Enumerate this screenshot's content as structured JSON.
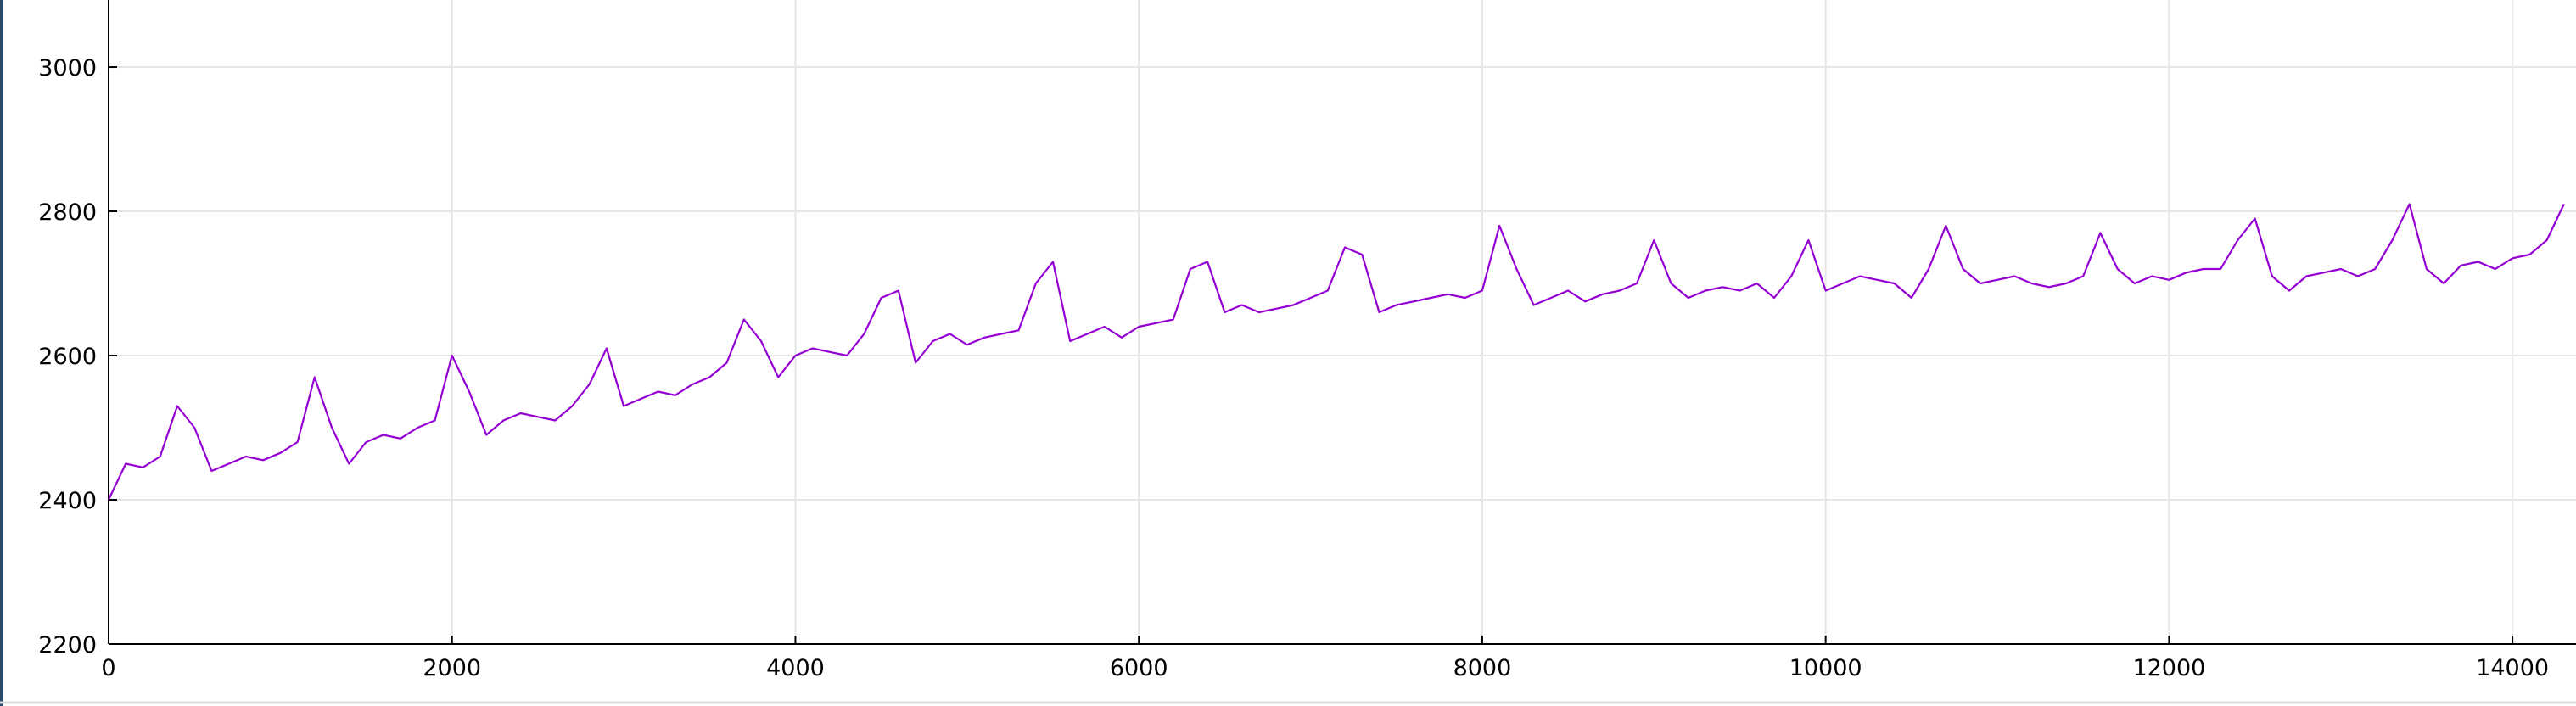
{
  "chart_data": {
    "type": "line",
    "x": [
      0,
      100,
      200,
      300,
      400,
      500,
      600,
      700,
      800,
      900,
      1000,
      1100,
      1200,
      1300,
      1400,
      1500,
      1600,
      1700,
      1800,
      1900,
      2000,
      2100,
      2200,
      2300,
      2400,
      2500,
      2600,
      2700,
      2800,
      2900,
      3000,
      3100,
      3200,
      3300,
      3400,
      3500,
      3600,
      3700,
      3800,
      3900,
      4000,
      4100,
      4200,
      4300,
      4400,
      4500,
      4600,
      4700,
      4800,
      4900,
      5000,
      5100,
      5200,
      5300,
      5400,
      5500,
      5600,
      5700,
      5800,
      5900,
      6000,
      6100,
      6200,
      6300,
      6400,
      6500,
      6600,
      6700,
      6800,
      6900,
      7000,
      7100,
      7200,
      7300,
      7400,
      7500,
      7600,
      7700,
      7800,
      7900,
      8000,
      8100,
      8200,
      8300,
      8400,
      8500,
      8600,
      8700,
      8800,
      8900,
      9000,
      9100,
      9200,
      9300,
      9400,
      9500,
      9600,
      9700,
      9800,
      9900,
      10000,
      10100,
      10200,
      10300,
      10400,
      10500,
      10600,
      10700,
      10800,
      10900,
      11000,
      11100,
      11200,
      11300,
      11400,
      11500,
      11600,
      11700,
      11800,
      11900,
      12000,
      12100,
      12200,
      12300,
      12400,
      12500,
      12600,
      12700,
      12800,
      12900,
      13000,
      13100,
      13200,
      13300,
      13400,
      13500,
      13600,
      13700,
      13800,
      13900,
      14000,
      14100,
      14200,
      14300
    ],
    "series": [
      {
        "color": "#9400d3",
        "values": [
          2400,
          2450,
          2445,
          2460,
          2530,
          2500,
          2440,
          2450,
          2460,
          2455,
          2465,
          2480,
          2570,
          2500,
          2450,
          2480,
          2490,
          2485,
          2500,
          2510,
          2600,
          2550,
          2490,
          2510,
          2520,
          2515,
          2510,
          2530,
          2560,
          2610,
          2530,
          2540,
          2550,
          2545,
          2560,
          2570,
          2590,
          2650,
          2620,
          2570,
          2600,
          2610,
          2605,
          2600,
          2630,
          2680,
          2690,
          2590,
          2620,
          2630,
          2615,
          2625,
          2630,
          2635,
          2700,
          2730,
          2620,
          2630,
          2640,
          2625,
          2640,
          2645,
          2650,
          2720,
          2730,
          2660,
          2670,
          2660,
          2665,
          2670,
          2680,
          2690,
          2750,
          2740,
          2660,
          2670,
          2675,
          2680,
          2685,
          2680,
          2690,
          2780,
          2720,
          2670,
          2680,
          2690,
          2675,
          2685,
          2690,
          2700,
          2760,
          2700,
          2680,
          2690,
          2695,
          2690,
          2700,
          2680,
          2710,
          2760,
          2690,
          2700,
          2710,
          2705,
          2700,
          2680,
          2720,
          2780,
          2720,
          2700,
          2705,
          2710,
          2700,
          2695,
          2700,
          2710,
          2770,
          2720,
          2700,
          2710,
          2705,
          2715,
          2720,
          2720,
          2760,
          2790,
          2710,
          2690,
          2710,
          2715,
          2720,
          2710,
          2720,
          2760,
          2810,
          2720,
          2700,
          2725,
          2730,
          2720,
          2735,
          2740,
          2760,
          2810
        ]
      }
    ],
    "xlim": [
      0,
      14370
    ],
    "ylim": [
      2200,
      3093
    ],
    "xticks": [
      0,
      2000,
      4000,
      6000,
      8000,
      10000,
      12000,
      14000
    ],
    "yticks": [
      2200,
      2400,
      2600,
      2800,
      3000
    ],
    "grid": true
  }
}
